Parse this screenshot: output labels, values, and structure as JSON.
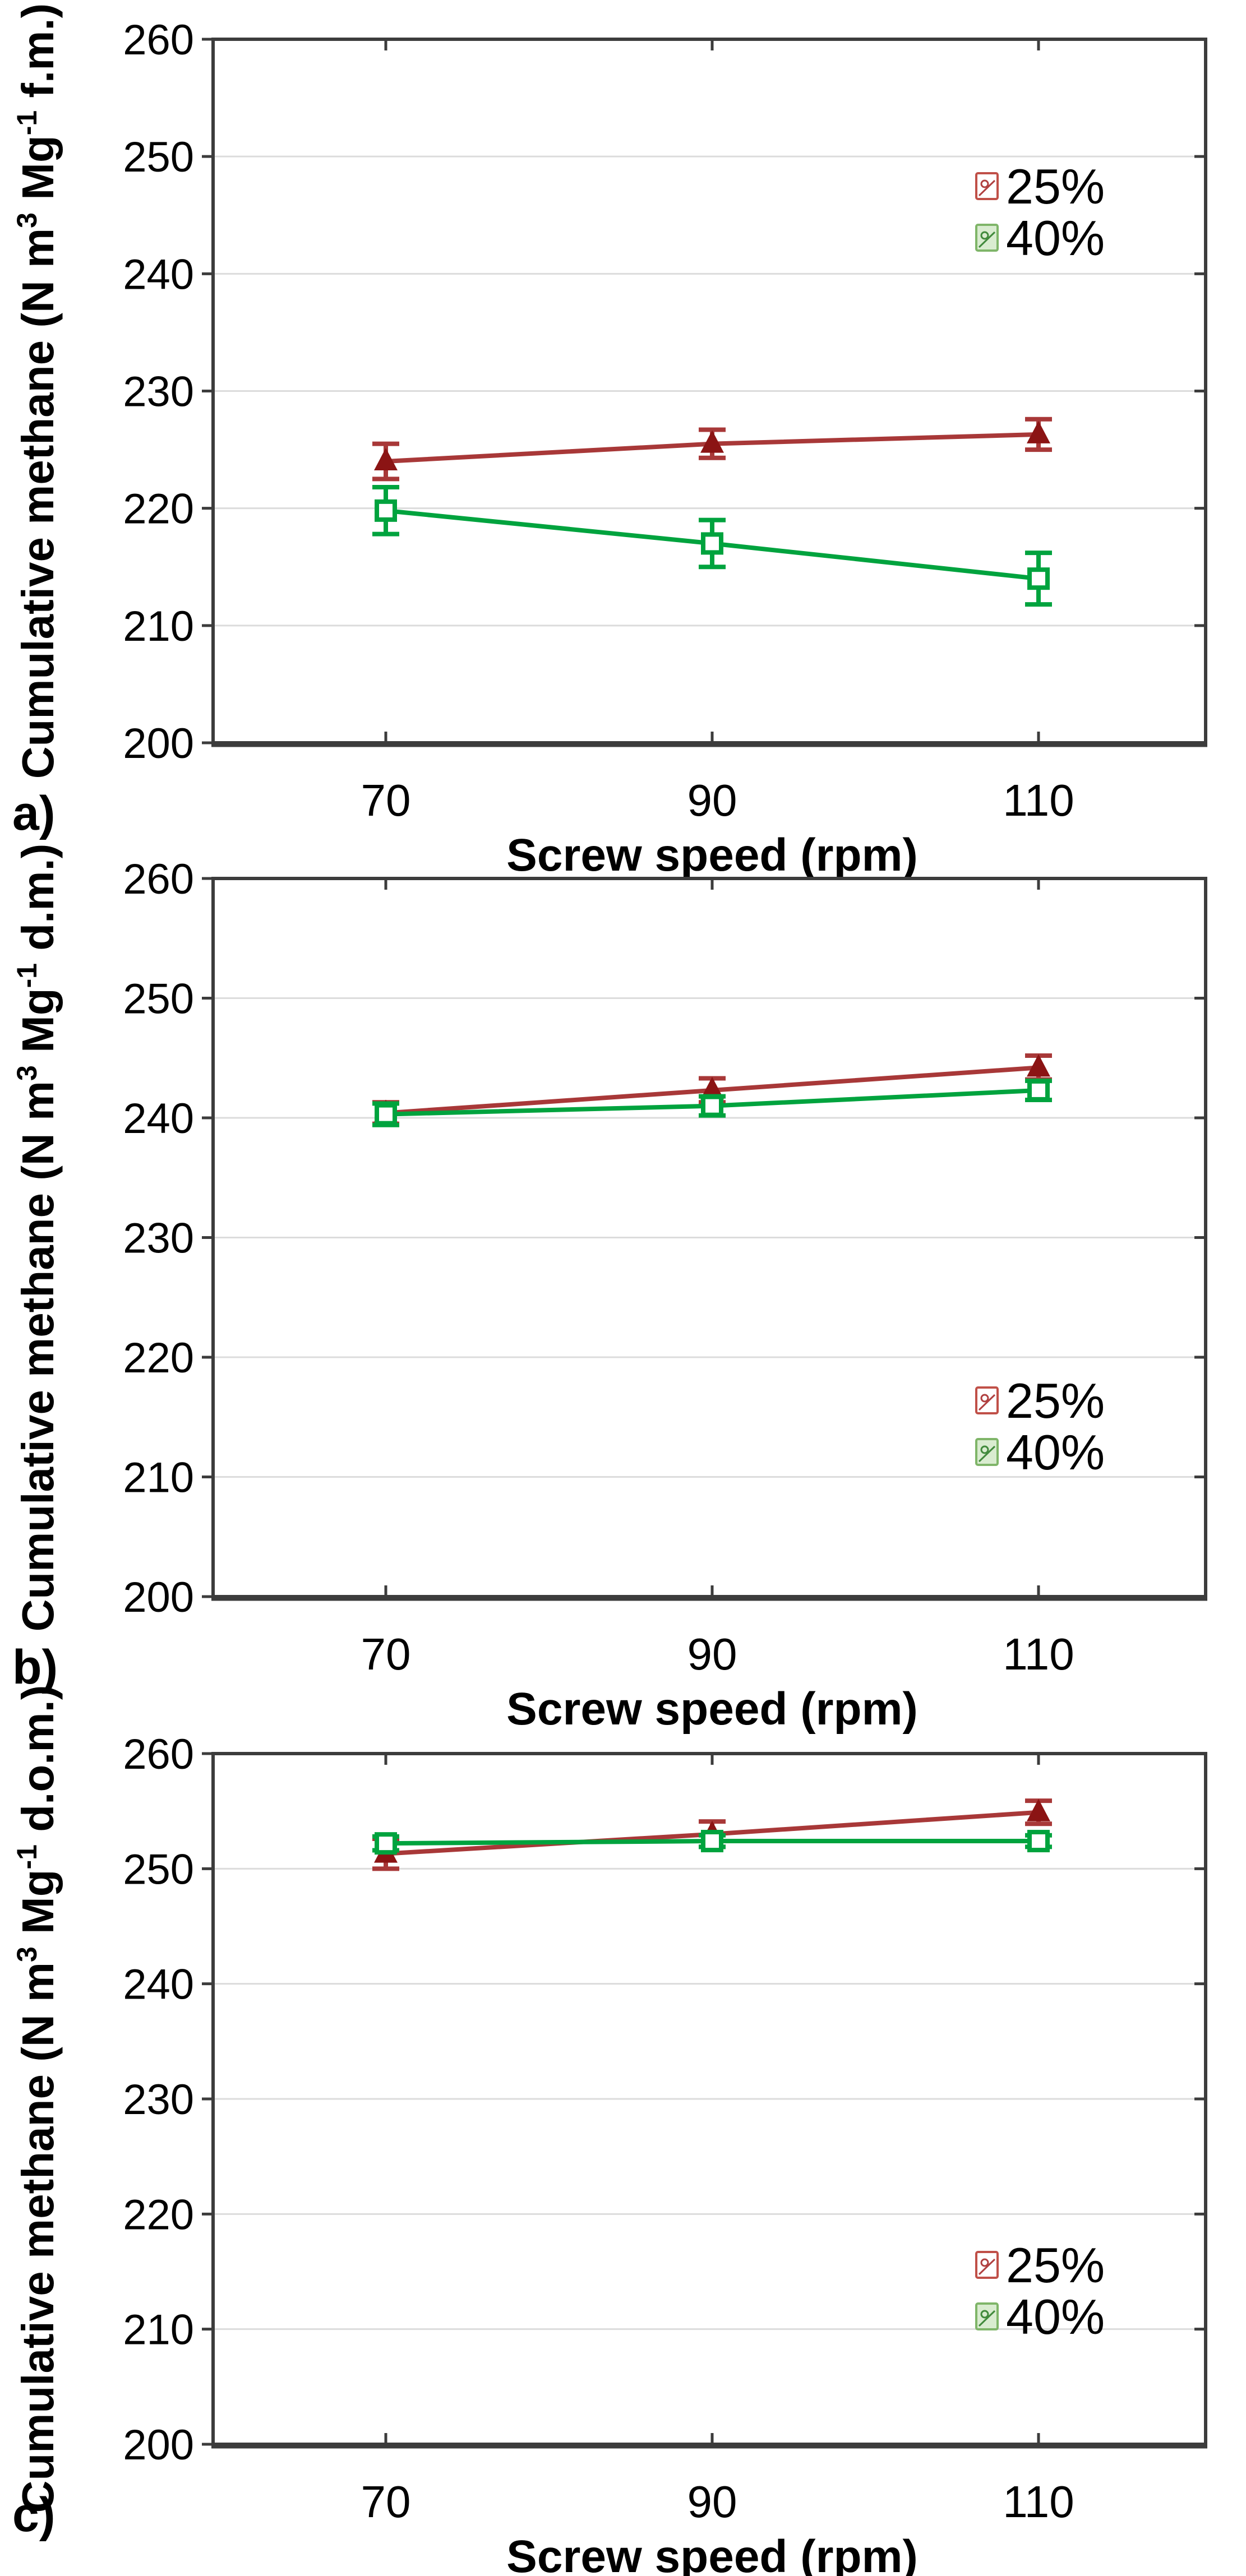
{
  "figure": {
    "background": "#ffffff",
    "panel_labels": [
      "a)",
      "b)",
      "c)"
    ]
  },
  "colors": {
    "series_25_line": "#a83838",
    "series_25_marker": "#8b1414",
    "series_40_line": "#00a33e",
    "series_40_marker": "#00a33e",
    "frame": "#3c3c3c",
    "gridline": "#dcdcdc",
    "text": "#000000",
    "legend_icon_red_border": "#c05048",
    "legend_icon_red_glyph": "#b04040",
    "legend_icon_red_fill": "#ffffff",
    "legend_icon_green_border": "#7fb569",
    "legend_icon_green_glyph": "#418a3c",
    "legend_icon_green_fill": "#d9ecd0"
  },
  "chart_data": [
    {
      "panel_label": "a)",
      "type": "line",
      "x": [
        70,
        90,
        110
      ],
      "xticks": [
        "70",
        "90",
        "110"
      ],
      "xlabel": "Screw speed (rpm)",
      "ylabel": "Cumulative methane (N m³ Mg⁻¹ f.m.)",
      "ylabel_segments": [
        {
          "text": "Cumulative methane (N m",
          "sup": false
        },
        {
          "text": "3",
          "sup": true
        },
        {
          "text": " Mg",
          "sup": false
        },
        {
          "text": "-1",
          "sup": true
        },
        {
          "text": " f.m.)",
          "sup": false
        }
      ],
      "ylim": [
        200,
        260
      ],
      "yticks": [
        "260",
        "250",
        "240",
        "230",
        "220",
        "210",
        "200"
      ],
      "grid": "horizontal",
      "legend_position": "inside-right-upper",
      "series": [
        {
          "name": "25%",
          "marker": "filled-triangle-up",
          "values": [
            224.0,
            225.5,
            226.3
          ],
          "errors": [
            1.5,
            1.2,
            1.3
          ]
        },
        {
          "name": "40%",
          "marker": "open-square",
          "values": [
            219.8,
            217.0,
            214.0
          ],
          "errors": [
            2.0,
            2.0,
            2.2
          ]
        }
      ]
    },
    {
      "panel_label": "b)",
      "type": "line",
      "x": [
        70,
        90,
        110
      ],
      "xticks": [
        "70",
        "90",
        "110"
      ],
      "xlabel": "Screw speed (rpm)",
      "ylabel": "Cumulative methane (N m³ Mg⁻¹ d.m.)",
      "ylabel_segments": [
        {
          "text": "Cumulative methane (N m",
          "sup": false
        },
        {
          "text": "3",
          "sup": true
        },
        {
          "text": " Mg",
          "sup": false
        },
        {
          "text": "-1",
          "sup": true
        },
        {
          "text": " d.m.)",
          "sup": false
        }
      ],
      "ylim": [
        200,
        260
      ],
      "yticks": [
        "260",
        "250",
        "240",
        "230",
        "220",
        "210",
        "200"
      ],
      "grid": "horizontal",
      "legend_position": "inside-right-lower",
      "series": [
        {
          "name": "25%",
          "marker": "filled-triangle-up",
          "values": [
            240.4,
            242.3,
            244.2
          ],
          "errors": [
            0.9,
            1.0,
            1.0
          ]
        },
        {
          "name": "40%",
          "marker": "open-square",
          "values": [
            240.3,
            241.0,
            242.3
          ],
          "errors": [
            0.9,
            0.8,
            0.8
          ]
        }
      ]
    },
    {
      "panel_label": "c)",
      "type": "line",
      "x": [
        70,
        90,
        110
      ],
      "xticks": [
        "70",
        "90",
        "110"
      ],
      "xlabel": "Screw speed (rpm)",
      "ylabel": "Cumulative methane (N m³ Mg⁻¹ d.o.m.)",
      "ylabel_segments": [
        {
          "text": "Cumulative methane (N m",
          "sup": false
        },
        {
          "text": "3",
          "sup": true
        },
        {
          "text": " Mg",
          "sup": false
        },
        {
          "text": "-1",
          "sup": true
        },
        {
          "text": " d.o.m.)",
          "sup": false
        }
      ],
      "ylim": [
        200,
        260
      ],
      "yticks": [
        "260",
        "250",
        "240",
        "230",
        "220",
        "210",
        "200"
      ],
      "grid": "horizontal",
      "legend_position": "inside-right-lower",
      "series": [
        {
          "name": "25%",
          "marker": "filled-triangle-up",
          "values": [
            251.3,
            253.0,
            254.9
          ],
          "errors": [
            1.3,
            1.1,
            1.0
          ]
        },
        {
          "name": "40%",
          "marker": "open-square",
          "values": [
            252.2,
            252.4,
            252.4
          ],
          "errors": [
            0.6,
            0.5,
            0.5
          ]
        }
      ]
    }
  ]
}
